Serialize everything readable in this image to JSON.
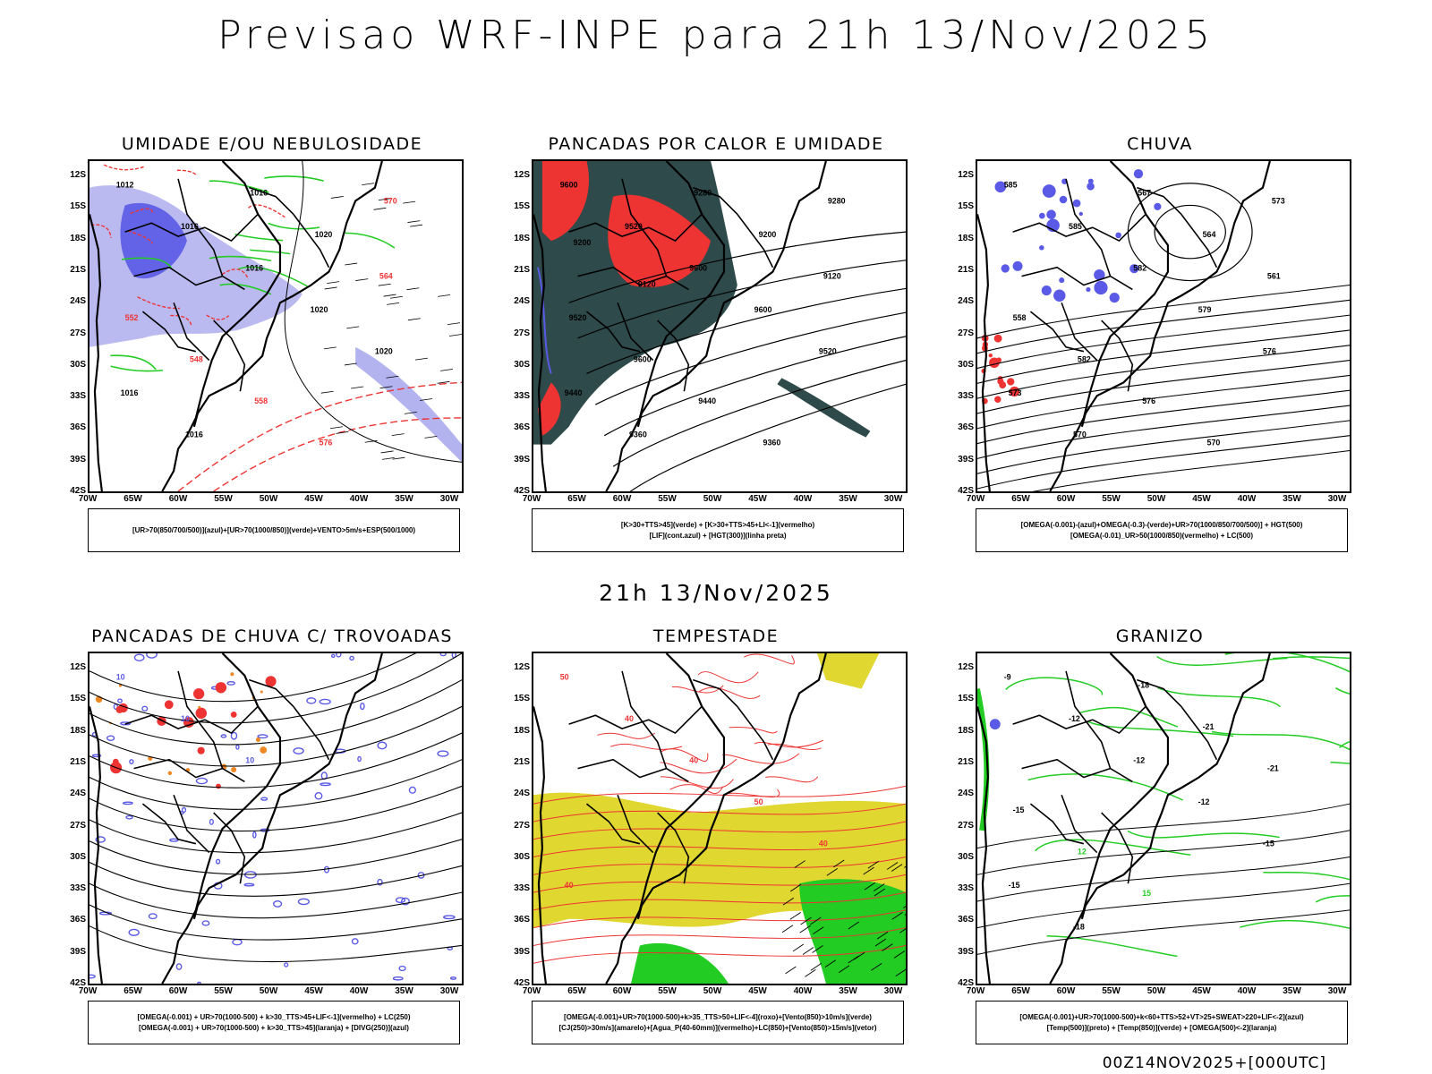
{
  "header": {
    "title": "Previsao WRF-INPE  para 21h 13/Nov/2025",
    "subtitle": "21h 13/Nov/2025",
    "footer": "00Z14NOV2025+[000UTC]"
  },
  "axes": {
    "lat_labels": [
      "12S",
      "15S",
      "18S",
      "21S",
      "24S",
      "27S",
      "30S",
      "33S",
      "36S",
      "39S",
      "42S"
    ],
    "lon_labels": [
      "70W",
      "65W",
      "60W",
      "55W",
      "50W",
      "45W",
      "40W",
      "35W",
      "30W"
    ]
  },
  "colors": {
    "humidity_blue": "#b3b3f0",
    "deep_blue": "#5a5ae6",
    "green": "#22cc22",
    "red": "#ee3333",
    "dark_teal": "#2e4a4a",
    "yellow": "#e0d830",
    "orange": "#ee8822",
    "contour": "#000000"
  },
  "panels": [
    {
      "id": "umidade",
      "title": "UMIDADE E/OU NEBULOSIDADE",
      "legend": [
        "[UR>70(850/700/500)](azul)+[UR>70(1000/850)](verde)+VENTO>5m/s+ESP(500/1000)"
      ],
      "contour_labels": [
        "1012",
        "1016",
        "1016",
        "1020",
        "1020",
        "1016",
        "1016",
        "1016",
        "1020",
        "564",
        "552",
        "548",
        "558",
        "576",
        "570"
      ]
    },
    {
      "id": "pancadas-calor",
      "title": "PANCADAS POR CALOR E UMIDADE",
      "legend": [
        "[K>30+TTS>45](verde) + [K>30+TTS>45+LI<-1](vermelho)",
        "[LIF](cont.azul) + [HGT(300)](linha preta)"
      ],
      "contour_labels": [
        "9600",
        "9520",
        "9600",
        "9600",
        "9520",
        "9440",
        "9360",
        "9280",
        "9200",
        "9120",
        "9520",
        "9600",
        "9440",
        "9360",
        "9280",
        "9200",
        "9120"
      ]
    },
    {
      "id": "chuva",
      "title": "CHUVA",
      "legend": [
        "[OMEGA(-0.001)-(azul)+OMEGA(-0.3)-(verde)+UR>70(1000/850/700/500)] + HGT(500)",
        "[OMEGA(-0.01)_UR>50(1000/850)(vermelho) + LC(500)"
      ],
      "contour_labels": [
        "585",
        "585",
        "582",
        "579",
        "576",
        "573",
        "570",
        "567",
        "564",
        "561",
        "558",
        "582",
        "576",
        "570",
        "573"
      ]
    },
    {
      "id": "pancadas-trovoadas",
      "title": "PANCADAS DE CHUVA C/ TROVOADAS",
      "legend": [
        "[OMEGA(-0.001) + UR>70(1000-500) + k>30_TTS>45+LIF<-1](vermelho) + LC(250)",
        "[OMEGA(-0.001) + UR>70(1000-500) + k>30_TTS>45](laranja) + [DIVG(250)](azul)"
      ],
      "contour_labels": [
        "10",
        "10",
        "10"
      ]
    },
    {
      "id": "tempestade",
      "title": "TEMPESTADE",
      "legend": [
        "[OMEGA(-0.001)+UR>70(1000-500)+k>35_TTS>50+LIF<-4](roxo)+[Vento(850)>10m/s](verde)",
        "[CJ(250)>30m/s](amarelo)+[Agua_P(40-60mm)](vermelho)+LC(850)+[Vento(850)>15m/s](vetor)"
      ],
      "contour_labels": [
        "50",
        "40",
        "40",
        "50",
        "40",
        "40"
      ]
    },
    {
      "id": "granizo",
      "title": "GRANIZO",
      "legend": [
        "[OMEGA(-0.001)+UR>70(1000-500)+k<60+TTS>52+VT>25+SWEAT>220+LIF<-2](azul)",
        "[Temp(500)](preto) + [Temp(850)](verde) + [OMEGA(500)<-2](laranja)"
      ],
      "contour_labels": [
        "-9",
        "-12",
        "-12",
        "-12",
        "-15",
        "-15",
        "-18",
        "-18",
        "-21",
        "-21",
        "-15",
        "12",
        "15"
      ]
    }
  ]
}
